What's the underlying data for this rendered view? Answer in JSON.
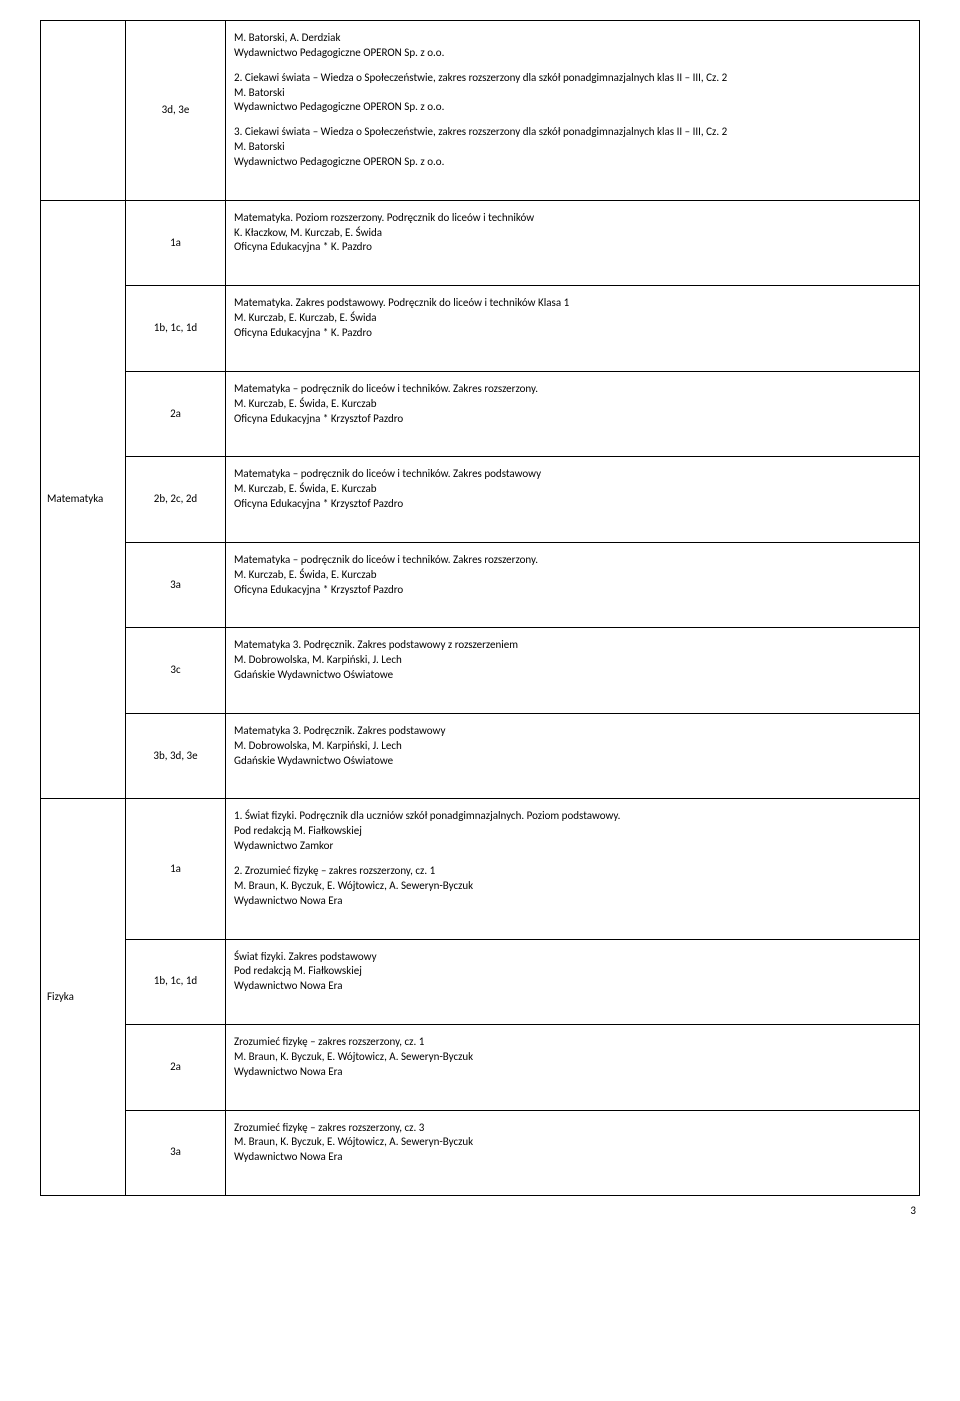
{
  "page_number": "3",
  "rows": [
    {
      "subject": "",
      "class": "3d, 3e",
      "desc": "M. Batorski, A. Derdziak\nWydawnictwo Pedagogiczne OPERON Sp. z o.o.\n\n2. Ciekawi świata – Wiedza o Społeczeństwie, zakres rozszerzony dla szkół ponadgimnazjalnych klas II – III, Cz. 2\nM. Batorski\nWydawnictwo Pedagogiczne OPERON Sp. z o.o.\n\n3. Ciekawi świata – Wiedza o Społeczeństwie, zakres rozszerzony dla szkół ponadgimnazjalnych klas II – III, Cz. 2\nM. Batorski\nWydawnictwo Pedagogiczne OPERON Sp. z o.o."
    },
    {
      "subject": "Matematyka",
      "subject_rowspan": 7,
      "class": "1a",
      "desc": "Matematyka. Poziom rozszerzony. Podręcznik do liceów i techników\nK. Kłaczkow, M. Kurczab, E. Świda\nOficyna Edukacyjna * K. Pazdro"
    },
    {
      "class": "1b, 1c, 1d",
      "desc": "Matematyka. Zakres podstawowy. Podręcznik do liceów i techników Klasa 1\nM. Kurczab, E. Kurczab, E. Świda\nOficyna Edukacyjna * K. Pazdro"
    },
    {
      "class": "2a",
      "desc": "Matematyka – podręcznik do liceów i techników. Zakres rozszerzony.\nM. Kurczab, E. Świda, E. Kurczab\nOficyna Edukacyjna * Krzysztof Pazdro"
    },
    {
      "class": "2b, 2c, 2d",
      "desc": "Matematyka – podręcznik do liceów i techników. Zakres podstawowy\nM. Kurczab, E. Świda, E. Kurczab\nOficyna Edukacyjna * Krzysztof Pazdro"
    },
    {
      "class": "3a",
      "desc": "Matematyka – podręcznik do liceów i techników. Zakres rozszerzony.\nM. Kurczab, E. Świda, E. Kurczab\nOficyna Edukacyjna * Krzysztof Pazdro"
    },
    {
      "class": "3c",
      "desc": "Matematyka 3. Podręcznik. Zakres podstawowy z rozszerzeniem\nM. Dobrowolska, M. Karpiński, J. Lech\nGdańskie Wydawnictwo Oświatowe"
    },
    {
      "class": "3b, 3d, 3e",
      "desc": "Matematyka 3. Podręcznik. Zakres podstawowy\nM. Dobrowolska, M. Karpiński, J. Lech\nGdańskie Wydawnictwo Oświatowe"
    },
    {
      "subject": "Fizyka",
      "subject_rowspan": 4,
      "class": "1a",
      "desc": "1. Świat fizyki. Podręcznik dla uczniów szkół ponadgimnazjalnych. Poziom podstawowy.\nPod redakcją M. Fiałkowskiej\nWydawnictwo Zamkor\n\n2. Zrozumieć fizykę – zakres rozszerzony, cz. 1\nM. Braun, K. Byczuk, E. Wójtowicz, A. Seweryn-Byczuk\nWydawnictwo Nowa Era"
    },
    {
      "class": "1b, 1c, 1d",
      "desc": "Świat fizyki. Zakres podstawowy\nPod redakcją M. Fiałkowskiej\nWydawnictwo Nowa Era"
    },
    {
      "class": "2a",
      "desc": "Zrozumieć fizykę – zakres rozszerzony, cz. 1\nM. Braun, K. Byczuk, E. Wójtowicz, A. Seweryn-Byczuk\nWydawnictwo Nowa Era"
    },
    {
      "class": "3a",
      "desc": "Zrozumieć fizykę – zakres rozszerzony, cz. 3\nM. Braun, K. Byczuk, E. Wójtowicz, A. Seweryn-Byczuk\nWydawnictwo Nowa Era"
    }
  ]
}
